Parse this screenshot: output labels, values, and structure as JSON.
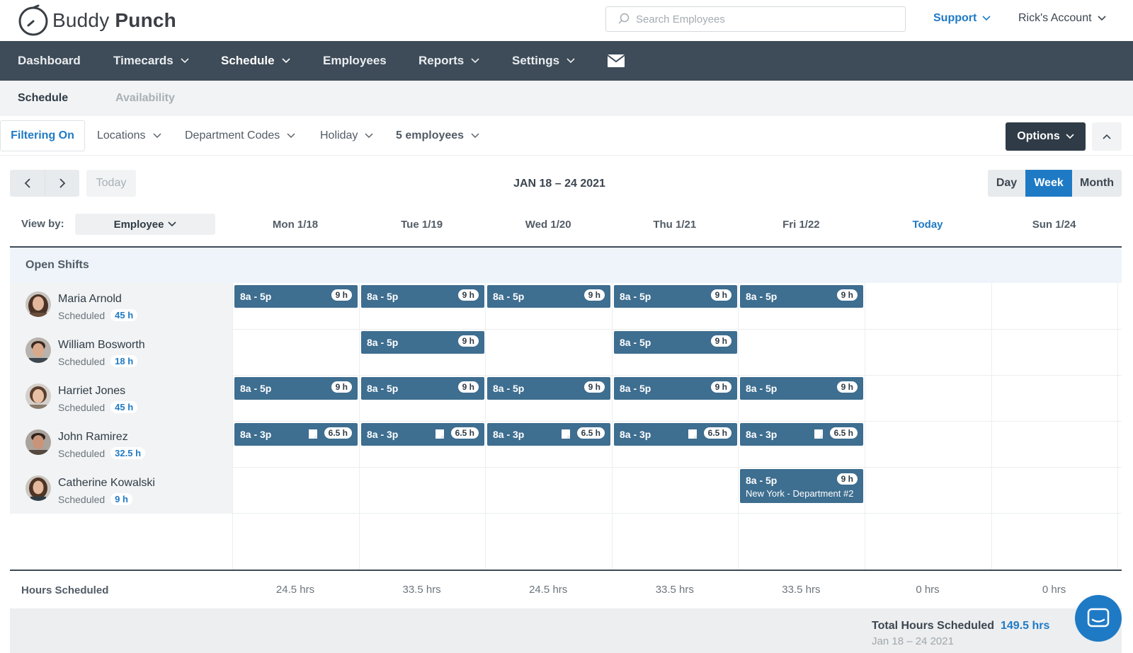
{
  "header": {
    "logo_text_light": "Buddy",
    "logo_text_bold": "Punch",
    "search_placeholder": "Search Employees",
    "support_label": "Support",
    "account_label": "Rick's Account"
  },
  "nav": {
    "items": [
      {
        "label": "Dashboard"
      },
      {
        "label": "Timecards"
      },
      {
        "label": "Schedule"
      },
      {
        "label": "Employees"
      },
      {
        "label": "Reports"
      },
      {
        "label": "Settings"
      }
    ],
    "active": "Schedule",
    "mail_icon": "envelope-icon"
  },
  "subnav": {
    "items": [
      {
        "label": "Schedule"
      },
      {
        "label": "Availability"
      }
    ]
  },
  "filters": {
    "filter_on_label": "Filtering On",
    "dropdowns": [
      {
        "label": "Locations"
      },
      {
        "label": "Department Codes"
      },
      {
        "label": "Holiday"
      },
      {
        "label": "5 employees"
      }
    ],
    "options_label": "Options"
  },
  "calendar": {
    "today_label": "Today",
    "range_title": "JAN 18 – 24 2021",
    "view_modes": [
      {
        "label": "Day"
      },
      {
        "label": "Week"
      },
      {
        "label": "Month"
      }
    ],
    "active_view": "Week",
    "view_by_label": "View by:",
    "view_by_value": "Employee",
    "days": [
      {
        "label": "Mon 1/18"
      },
      {
        "label": "Tue 1/19"
      },
      {
        "label": "Wed 1/20"
      },
      {
        "label": "Thu 1/21"
      },
      {
        "label": "Fri 1/22"
      },
      {
        "label": "Today"
      },
      {
        "label": "Sun 1/24"
      }
    ],
    "open_shifts_label": "Open Shifts"
  },
  "employees": [
    {
      "name": "Maria Arnold",
      "scheduled_label": "Scheduled",
      "hours": "45 h"
    },
    {
      "name": "William Bosworth",
      "scheduled_label": "Scheduled",
      "hours": "18 h"
    },
    {
      "name": "Harriet Jones",
      "scheduled_label": "Scheduled",
      "hours": "45 h"
    },
    {
      "name": "John Ramirez",
      "scheduled_label": "Scheduled",
      "hours": "32.5 h"
    },
    {
      "name": "Catherine Kowalski",
      "scheduled_label": "Scheduled",
      "hours": "9 h"
    }
  ],
  "shifts": [
    {
      "row": 0,
      "day": 0,
      "time": "8a - 5p",
      "dur": "9 h"
    },
    {
      "row": 0,
      "day": 1,
      "time": "8a - 5p",
      "dur": "9 h"
    },
    {
      "row": 0,
      "day": 2,
      "time": "8a - 5p",
      "dur": "9 h"
    },
    {
      "row": 0,
      "day": 3,
      "time": "8a - 5p",
      "dur": "9 h"
    },
    {
      "row": 0,
      "day": 4,
      "time": "8a - 5p",
      "dur": "9 h"
    },
    {
      "row": 1,
      "day": 1,
      "time": "8a - 5p",
      "dur": "9 h"
    },
    {
      "row": 1,
      "day": 3,
      "time": "8a - 5p",
      "dur": "9 h"
    },
    {
      "row": 2,
      "day": 0,
      "time": "8a - 5p",
      "dur": "9 h"
    },
    {
      "row": 2,
      "day": 1,
      "time": "8a - 5p",
      "dur": "9 h"
    },
    {
      "row": 2,
      "day": 2,
      "time": "8a - 5p",
      "dur": "9 h"
    },
    {
      "row": 2,
      "day": 3,
      "time": "8a - 5p",
      "dur": "9 h"
    },
    {
      "row": 2,
      "day": 4,
      "time": "8a - 5p",
      "dur": "9 h"
    },
    {
      "row": 3,
      "day": 0,
      "time": "8a - 3p",
      "dur": "6.5 h",
      "note": true
    },
    {
      "row": 3,
      "day": 1,
      "time": "8a - 3p",
      "dur": "6.5 h",
      "note": true
    },
    {
      "row": 3,
      "day": 2,
      "time": "8a - 3p",
      "dur": "6.5 h",
      "note": true
    },
    {
      "row": 3,
      "day": 3,
      "time": "8a - 3p",
      "dur": "6.5 h",
      "note": true
    },
    {
      "row": 3,
      "day": 4,
      "time": "8a - 3p",
      "dur": "6.5 h",
      "note": true
    },
    {
      "row": 4,
      "day": 4,
      "time": "8a - 5p",
      "dur": "9 h",
      "location": "New York - Department #2"
    }
  ],
  "totals": {
    "label": "Hours Scheduled",
    "values": [
      "24.5 hrs",
      "33.5 hrs",
      "24.5 hrs",
      "33.5 hrs",
      "33.5 hrs",
      "0 hrs",
      "0 hrs"
    ],
    "grand_label": "Total Hours Scheduled",
    "grand_value": "149.5 hrs",
    "grand_range": "Jan 18 – 24 2021"
  },
  "colors": {
    "nav_bg": "#3e4b58",
    "accent": "#1f7ac5",
    "shift_bg": "#3e6e90"
  }
}
